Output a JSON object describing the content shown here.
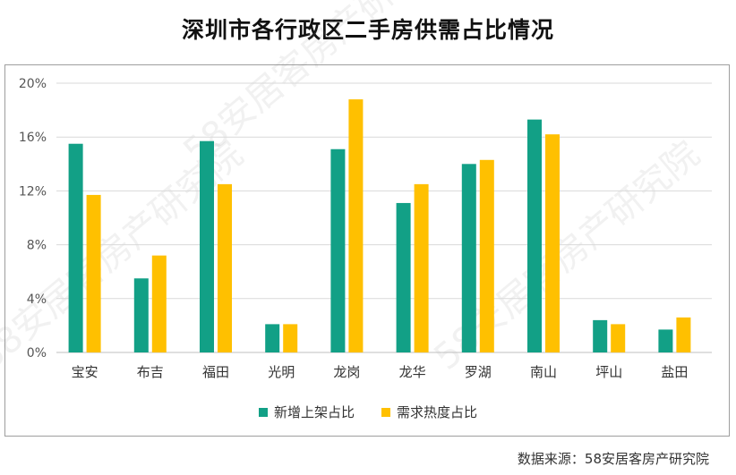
{
  "title": "深圳市各行政区二手房供需占比情况",
  "source": "数据来源：58安居客房产研究院",
  "watermark_text": "58安居客房产研究院",
  "colors": {
    "series1": "#12a086",
    "series2": "#ffc000",
    "grid": "#d9d9d9",
    "axis_text": "#555555"
  },
  "chart_data": {
    "type": "bar",
    "categories": [
      "宝安",
      "布吉",
      "福田",
      "光明",
      "龙岗",
      "龙华",
      "罗湖",
      "南山",
      "坪山",
      "盐田"
    ],
    "series": [
      {
        "name": "新增上架占比",
        "values": [
          15.5,
          5.5,
          15.7,
          2.1,
          15.1,
          11.1,
          14.0,
          17.3,
          2.4,
          1.7
        ]
      },
      {
        "name": "需求热度占比",
        "values": [
          11.7,
          7.2,
          12.5,
          2.1,
          18.8,
          12.5,
          14.3,
          16.2,
          2.1,
          2.6
        ]
      }
    ],
    "ylim": [
      0,
      20
    ],
    "yticks": [
      "0%",
      "4%",
      "8%",
      "12%",
      "16%",
      "20%"
    ],
    "ytick_values": [
      0,
      4,
      8,
      12,
      16,
      20
    ],
    "grid": true,
    "legend_position": "bottom"
  }
}
